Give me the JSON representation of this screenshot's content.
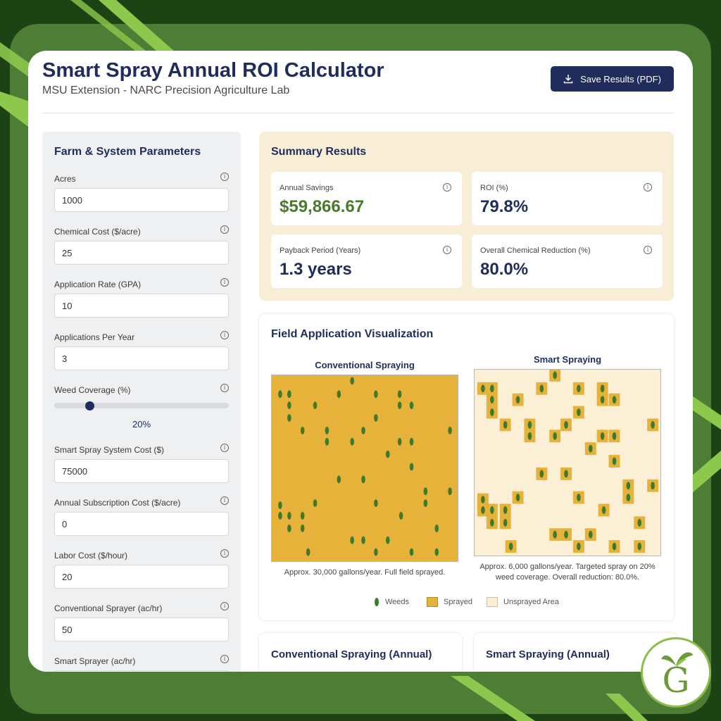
{
  "header": {
    "title": "Smart Spray Annual ROI Calculator",
    "subtitle": "MSU Extension - NARC Precision Agriculture Lab",
    "save_label": "Save Results (PDF)"
  },
  "params": {
    "title": "Farm & System Parameters",
    "fields": [
      {
        "label": "Acres",
        "value": "1000"
      },
      {
        "label": "Chemical Cost ($/acre)",
        "value": "25"
      },
      {
        "label": "Application Rate (GPA)",
        "value": "10"
      },
      {
        "label": "Applications Per Year",
        "value": "3"
      }
    ],
    "slider": {
      "label": "Weed Coverage (%)",
      "value": 20,
      "display": "20%"
    },
    "fields2": [
      {
        "label": "Smart Spray System Cost ($)",
        "value": "75000"
      },
      {
        "label": "Annual Subscription Cost ($/acre)",
        "value": "0"
      },
      {
        "label": "Labor Cost ($/hour)",
        "value": "20"
      },
      {
        "label": "Conventional Sprayer (ac/hr)",
        "value": "50"
      },
      {
        "label": "Smart Sprayer (ac/hr)",
        "value": ""
      }
    ]
  },
  "summary": {
    "title": "Summary Results",
    "cards": [
      {
        "label": "Annual Savings",
        "value": "$59,866.67"
      },
      {
        "label": "ROI (%)",
        "value": "79.8%"
      },
      {
        "label": "Payback Period (Years)",
        "value": "1.3 years"
      },
      {
        "label": "Overall Chemical Reduction (%)",
        "value": "80.0%"
      }
    ]
  },
  "viz": {
    "title": "Field Application Visualization",
    "conventional": {
      "title": "Conventional Spraying",
      "caption": "Approx. 30,000 gallons/year. Full field sprayed."
    },
    "smart": {
      "title": "Smart Spraying",
      "caption_line1": "Approx. 6,000 gallons/year. Targeted spray on 20%",
      "caption_line2": "weed coverage. Overall reduction: 80.0%."
    },
    "legend": {
      "weeds": "Weeds",
      "sprayed": "Sprayed",
      "unsprayed": "Unsprayed Area"
    }
  },
  "bottom": {
    "conventional_title": "Conventional Spraying (Annual)",
    "smart_title": "Smart Spraying (Annual)"
  },
  "colors": {
    "navy": "#1f2c5c",
    "sprayed": "#e6b23a",
    "unsprayed": "#fbefd6",
    "weed": "#3d7a2e",
    "savings_green": "#4a7a2e"
  },
  "icons": {
    "save": "download-icon",
    "info": "info-icon",
    "logo": "leaf-g-logo"
  }
}
